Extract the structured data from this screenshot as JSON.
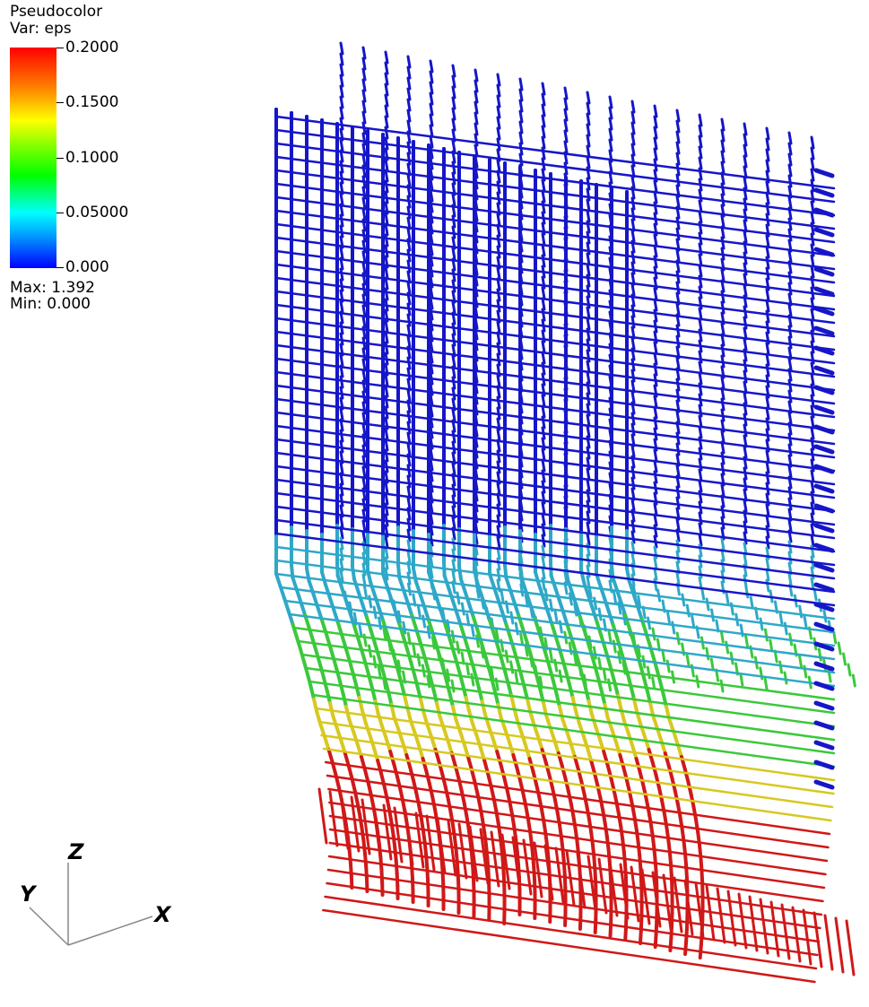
{
  "legend": {
    "title": "Pseudocolor",
    "variable": "Var: eps",
    "ticks": [
      "0.2000",
      "0.1500",
      "0.1000",
      "0.05000",
      "0.000"
    ],
    "max": "Max:  1.392",
    "min": "Min:  0.000"
  },
  "axes": {
    "z": "Z",
    "y": "Y",
    "x": "X"
  },
  "colors": {
    "low": "#1616c8",
    "mid": "#2fa8c8",
    "green": "#3cc83c",
    "high": "#d01818",
    "yellow": "#d8c820"
  }
}
